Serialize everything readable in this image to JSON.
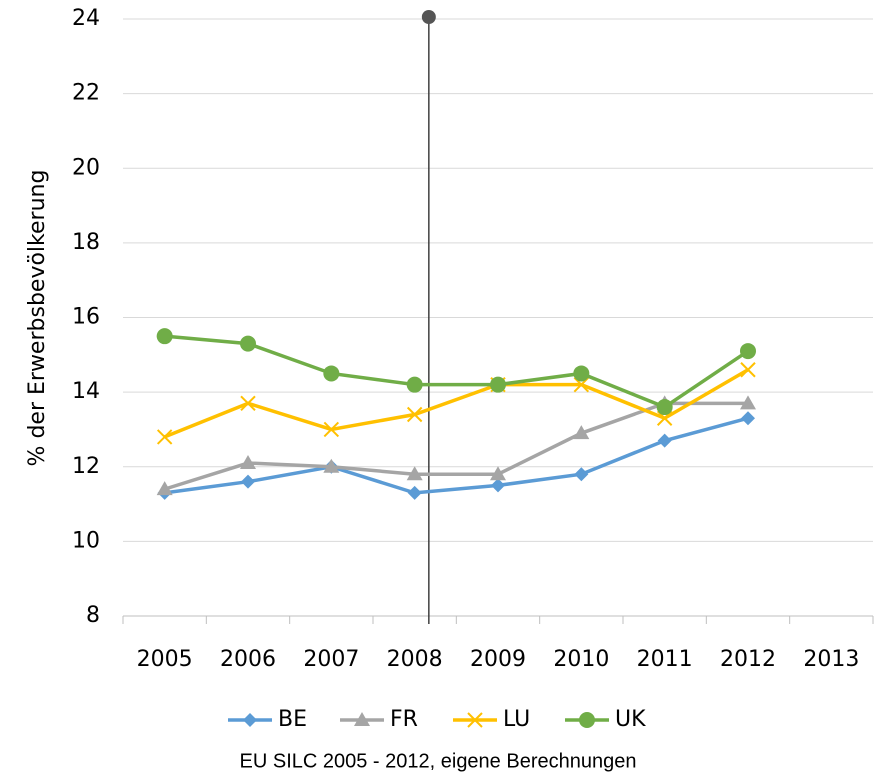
{
  "chart_data": {
    "type": "line",
    "y_label": "% der Erwerbsbevölkerung",
    "source": "EU SILC 2005 - 2012, eigene Berechnungen",
    "categories": [
      "2005",
      "2006",
      "2007",
      "2008",
      "2009",
      "2010",
      "2011",
      "2012",
      "2013"
    ],
    "series": [
      {
        "name": "BE",
        "color": "#5b9bd5",
        "marker": "diamond",
        "values": [
          11.3,
          11.6,
          12.0,
          11.3,
          11.5,
          11.8,
          12.7,
          13.3,
          null
        ]
      },
      {
        "name": "FR",
        "color": "#a5a5a5",
        "marker": "triangle",
        "values": [
          11.4,
          12.1,
          12.0,
          11.8,
          11.8,
          12.9,
          13.7,
          13.7,
          null
        ]
      },
      {
        "name": "LU",
        "color": "#ffc000",
        "marker": "x",
        "values": [
          12.8,
          13.7,
          13.0,
          13.4,
          14.2,
          14.2,
          13.3,
          14.6,
          null
        ]
      },
      {
        "name": "UK",
        "color": "#70ad47",
        "marker": "circle",
        "values": [
          15.5,
          15.3,
          14.5,
          14.2,
          14.2,
          14.5,
          13.6,
          15.1,
          null
        ]
      }
    ],
    "vline_x": 3.17,
    "ylim": [
      8,
      24
    ],
    "yticks": [
      8,
      10,
      12,
      14,
      16,
      18,
      20,
      22,
      24
    ],
    "grid": true,
    "legend": "bottom"
  }
}
